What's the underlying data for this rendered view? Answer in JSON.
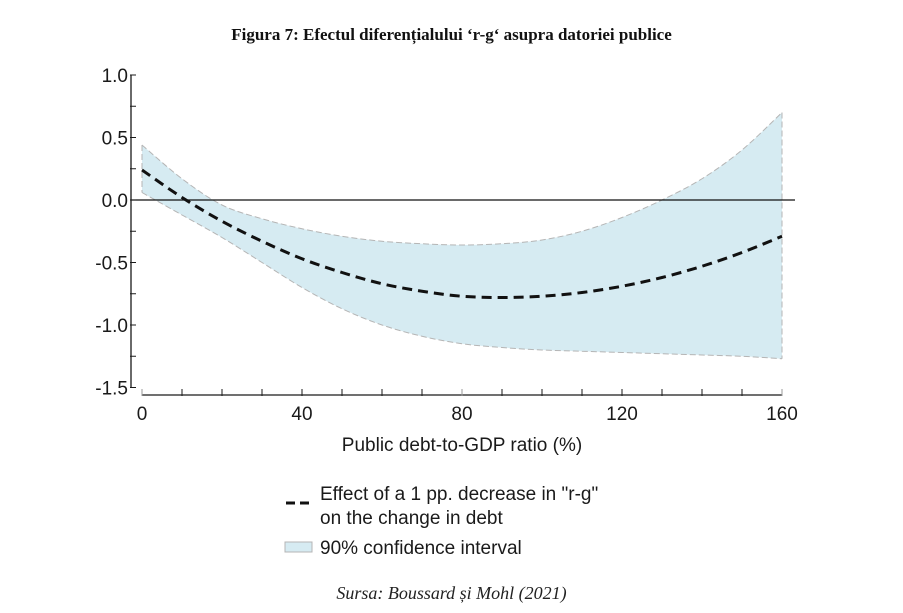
{
  "title": "Figura 7: Efectul diferențialului ‘r-g‘ asupra datoriei publice",
  "source": "Sursa: Boussard și Mohl (2021)",
  "colors": {
    "band_fill": "#d6ebf2",
    "band_edge": "#b5b5b5",
    "estimate": "#111111",
    "axis": "#1a1a1a",
    "zero_line": "#111111"
  },
  "chart_data": {
    "type": "line",
    "title": "Figura 7: Efectul diferențialului ‘r-g‘ asupra datoriei publice",
    "xlabel": "Public debt-to-GDP ratio (%)",
    "ylabel": "",
    "xlim": [
      0,
      160
    ],
    "ylim": [
      -1.5,
      1.0
    ],
    "xticks": [
      0,
      40,
      80,
      120,
      160
    ],
    "xtick_labels": [
      "0",
      "40",
      "80",
      "120",
      "160"
    ],
    "xminor_step": 10,
    "yticks": [
      1.0,
      0.5,
      0.0,
      -0.5,
      -1.0,
      -1.5
    ],
    "ytick_labels": [
      "1.0",
      "0.5",
      "0.0",
      "-0.5",
      "-1.0",
      "-1.5"
    ],
    "yminor_step": 0.25,
    "grid": false,
    "reference_line_y": 0,
    "x": [
      0,
      10,
      20,
      30,
      40,
      50,
      60,
      70,
      80,
      90,
      100,
      110,
      120,
      130,
      140,
      150,
      160
    ],
    "series": [
      {
        "name": "Effect of a 1 pp. decrease in \"r-g\" on the change in debt",
        "style": "dashed",
        "values": [
          0.24,
          0.02,
          -0.17,
          -0.33,
          -0.47,
          -0.58,
          -0.67,
          -0.73,
          -0.77,
          -0.78,
          -0.77,
          -0.74,
          -0.69,
          -0.62,
          -0.53,
          -0.42,
          -0.29
        ]
      },
      {
        "name": "90% confidence interval",
        "style": "band",
        "upper": [
          0.44,
          0.17,
          -0.04,
          -0.15,
          -0.23,
          -0.29,
          -0.33,
          -0.35,
          -0.36,
          -0.35,
          -0.32,
          -0.25,
          -0.14,
          0.0,
          0.17,
          0.4,
          0.7
        ],
        "lower": [
          0.06,
          -0.12,
          -0.3,
          -0.5,
          -0.7,
          -0.87,
          -1.0,
          -1.09,
          -1.15,
          -1.18,
          -1.2,
          -1.21,
          -1.22,
          -1.23,
          -1.24,
          -1.25,
          -1.27
        ]
      }
    ],
    "legend": {
      "placement": "bottom-center",
      "entries": [
        {
          "label_line1": "Effect of a 1 pp. decrease in \"r-g\"",
          "label_line2": "on the change in debt",
          "symbol": "dashed-line"
        },
        {
          "label_line1": "90% confidence interval",
          "symbol": "filled-box"
        }
      ]
    }
  }
}
